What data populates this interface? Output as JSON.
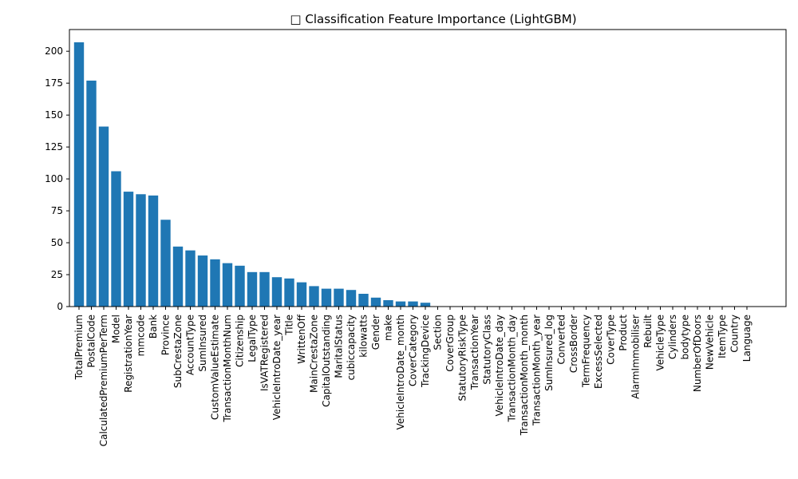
{
  "chart_data": {
    "type": "bar",
    "title": "□ Classification Feature Importance (LightGBM)",
    "xlabel": "",
    "ylabel": "",
    "ylim": [
      0,
      217
    ],
    "yticks": [
      0,
      25,
      50,
      75,
      100,
      125,
      150,
      175,
      200
    ],
    "grid": false,
    "legend": "none",
    "bar_color": "#1f77b4",
    "categories": [
      "TotalPremium",
      "PostalCode",
      "CalculatedPremiumPerTerm",
      "Model",
      "RegistrationYear",
      "mmcode",
      "Bank",
      "Province",
      "SubCrestaZone",
      "AccountType",
      "SumInsured",
      "CustomValueEstimate",
      "TransactionMonthNum",
      "Citizenship",
      "LegalType",
      "IsVATRegistered",
      "VehicleIntroDate_year",
      "Title",
      "WrittenOff",
      "MainCrestaZone",
      "CapitalOutstanding",
      "MaritalStatus",
      "cubiccapacity",
      "kilowatts",
      "Gender",
      "make",
      "VehicleIntroDate_month",
      "CoverCategory",
      "TrackingDevice",
      "Section",
      "CoverGroup",
      "StatutoryRiskType",
      "TransactionYear",
      "StatutoryClass",
      "VehicleIntroDate_day",
      "TransactionMonth_day",
      "TransactionMonth_month",
      "TransactionMonth_year",
      "SumInsured_log",
      "Converted",
      "CrossBorder",
      "TermFrequency",
      "ExcessSelected",
      "CoverType",
      "Product",
      "AlarmImmobiliser",
      "Rebuilt",
      "VehicleType",
      "Cylinders",
      "bodytype",
      "NumberOfDoors",
      "NewVehicle",
      "ItemType",
      "Country",
      "Language"
    ],
    "values": [
      207,
      177,
      141,
      106,
      90,
      88,
      87,
      68,
      47,
      44,
      40,
      37,
      34,
      32,
      27,
      27,
      23,
      22,
      19,
      16,
      14,
      14,
      13,
      10,
      7,
      5,
      4,
      4,
      3,
      0,
      0,
      0,
      0,
      0,
      0,
      0,
      0,
      0,
      0,
      0,
      0,
      0,
      0,
      0,
      0,
      0,
      0,
      0,
      0,
      0,
      0,
      0,
      0,
      0,
      0
    ]
  }
}
